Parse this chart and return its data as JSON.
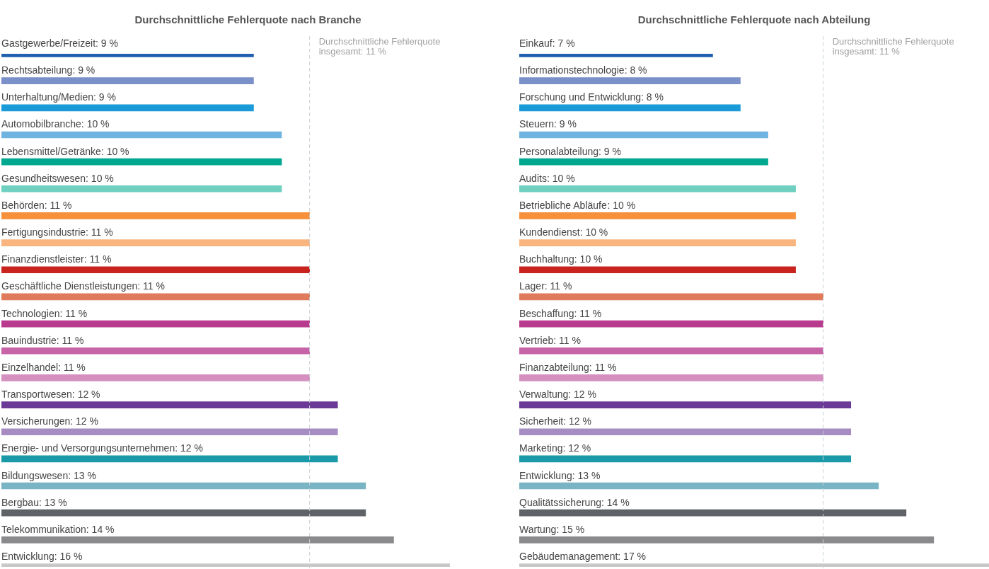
{
  "chart_data": [
    {
      "type": "bar",
      "orientation": "horizontal",
      "title": "Durchschnittliche Fehlerquote nach Branche",
      "tick_labels": false,
      "legend": false,
      "categories": [
        "Gastgewerbe/Freizeit",
        "Rechtsabteilung",
        "Unterhaltung/Medien",
        "Automobilbranche",
        "Lebensmittel/Getränke",
        "Gesundheitswesen",
        "Behörden",
        "Fertigungsindustrie",
        "Finanzdienstleister",
        "Geschäftliche Dienstleistungen",
        "Technologien",
        "Bauindustrie",
        "Einzelhandel",
        "Transportwesen",
        "Versicherungen",
        "Energie- und Versorgungsunternehmen",
        "Bildungswesen",
        "Bergbau",
        "Telekommunikation",
        "Entwicklung"
      ],
      "values": [
        9,
        9,
        9,
        10,
        10,
        10,
        11,
        11,
        11,
        11,
        11,
        11,
        11,
        12,
        12,
        12,
        13,
        13,
        14,
        16
      ],
      "value_labels": [
        ": 9 %",
        ": 9 %",
        ": 9 %",
        ": 10 %",
        ": 10 %",
        ": 10 %",
        ": 11 %",
        ": 11 %",
        ": 11 %",
        ": 11 %",
        ": 11 %",
        ": 11 %",
        ": 11 %",
        ": 12 %",
        ": 12 %",
        ": 12 %",
        ": 13 %",
        ": 13 %",
        ": 14 %",
        ": 16 %"
      ],
      "colors": [
        "#2160ae",
        "#7b8fc8",
        "#1a9ad6",
        "#6fb4e0",
        "#00a88f",
        "#6fcfc0",
        "#f7903a",
        "#f9b580",
        "#c9231e",
        "#df7a5c",
        "#b83b8e",
        "#c764a8",
        "#d590c0",
        "#6b3a96",
        "#a78cc4",
        "#1a9aa8",
        "#78b4c4",
        "#5f6368",
        "#8a8a8c",
        "#c8c8c8"
      ],
      "ref_lines": [
        {
          "axis": "x",
          "value": 11,
          "label": "Durchschnittliche Fehlerquote insgesamt: 11 %",
          "color": "#c8d0d8",
          "line_style": "dashed"
        }
      ]
    },
    {
      "type": "bar",
      "orientation": "horizontal",
      "title": "Durchschnittliche Fehlerquote nach Abteilung",
      "tick_labels": false,
      "legend": false,
      "categories": [
        "Einkauf",
        "Informationstechnologie",
        "Forschung und Entwicklung",
        "Steuern",
        "Personalabteilung",
        "Audits",
        "Betriebliche Abläufe",
        "Kundendienst",
        "Buchhaltung",
        "Lager",
        "Beschaffung",
        "Vertrieb",
        "Finanzabteilung",
        "Verwaltung",
        "Sicherheit",
        "Marketing",
        "Entwicklung",
        "Qualitätssicherung",
        "Wartung",
        "Gebäudemanagement"
      ],
      "values": [
        7,
        8,
        8,
        9,
        9,
        10,
        10,
        10,
        10,
        11,
        11,
        11,
        11,
        12,
        12,
        12,
        13,
        14,
        15,
        17
      ],
      "value_labels": [
        ": 7 %",
        ": 8 %",
        ": 8 %",
        ": 9 %",
        ": 9 %",
        ": 10 %",
        ": 10 %",
        ": 10 %",
        ": 10 %",
        ": 11 %",
        ": 11 %",
        ": 11 %",
        ": 11 %",
        ": 12 %",
        ": 12 %",
        ": 12 %",
        ": 13 %",
        ": 14 %",
        ": 15 %",
        ": 17 %"
      ],
      "colors": [
        "#2160ae",
        "#7b8fc8",
        "#1a9ad6",
        "#6fb4e0",
        "#00a88f",
        "#6fcfc0",
        "#f7903a",
        "#f9b580",
        "#c9231e",
        "#df7a5c",
        "#b83b8e",
        "#c764a8",
        "#d590c0",
        "#6b3a96",
        "#a78cc4",
        "#1a9aa8",
        "#78b4c4",
        "#5f6368",
        "#8a8a8c",
        "#c8c8c8"
      ],
      "ref_lines": [
        {
          "axis": "x",
          "value": 11,
          "label": "Durchschnittliche Fehlerquote insgesamt: 11 %",
          "color": "#c8d0d8",
          "line_style": "dashed"
        }
      ]
    }
  ]
}
